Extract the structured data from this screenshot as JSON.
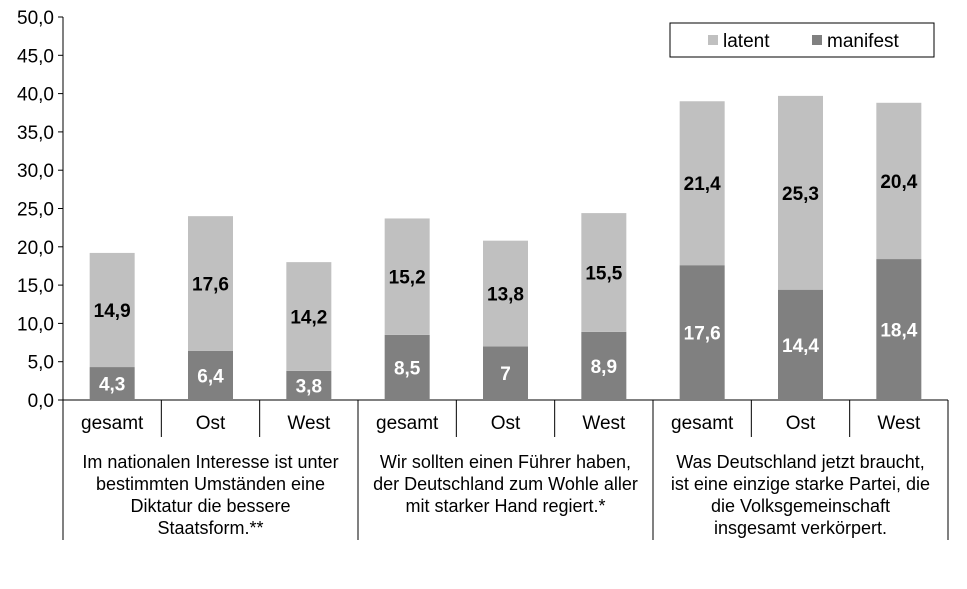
{
  "chart_data": {
    "type": "bar",
    "stacked": true,
    "ylim": [
      0,
      50
    ],
    "yticks": [
      "0,0",
      "5,0",
      "10,0",
      "15,0",
      "20,0",
      "25,0",
      "30,0",
      "35,0",
      "40,0",
      "45,0",
      "50,0"
    ],
    "categories": [
      "gesamt",
      "Ost",
      "West",
      "gesamt",
      "Ost",
      "West",
      "gesamt",
      "Ost",
      "West"
    ],
    "groups": [
      {
        "lines": [
          "Im nationalen Interesse ist unter",
          "bestimmten Umständen eine",
          "Diktatur die bessere",
          "Staatsform.**"
        ]
      },
      {
        "lines": [
          "Wir sollten einen Führer haben,",
          "der Deutschland zum Wohle aller",
          "mit starker Hand regiert.*"
        ]
      },
      {
        "lines": [
          "Was Deutschland jetzt braucht,",
          "ist eine einzige starke Partei, die",
          "die Volksgemeinschaft",
          "insgesamt verkörpert."
        ]
      }
    ],
    "series": [
      {
        "name": "manifest",
        "color": "#808080",
        "values": [
          4.3,
          6.4,
          3.8,
          8.5,
          7,
          8.9,
          17.6,
          14.4,
          18.4
        ],
        "labels": [
          "4,3",
          "6,4",
          "3,8",
          "8,5",
          "7",
          "8,9",
          "17,6",
          "14,4",
          "18,4"
        ]
      },
      {
        "name": "latent",
        "color": "#c0c0c0",
        "values": [
          14.9,
          17.6,
          14.2,
          15.2,
          13.8,
          15.5,
          21.4,
          25.3,
          20.4
        ],
        "labels": [
          "14,9",
          "17,6",
          "14,2",
          "15,2",
          "13,8",
          "15,5",
          "21,4",
          "25,3",
          "20,4"
        ]
      }
    ],
    "legend": {
      "position": "top-right",
      "items": [
        "latent",
        "manifest"
      ]
    },
    "grid": false
  }
}
